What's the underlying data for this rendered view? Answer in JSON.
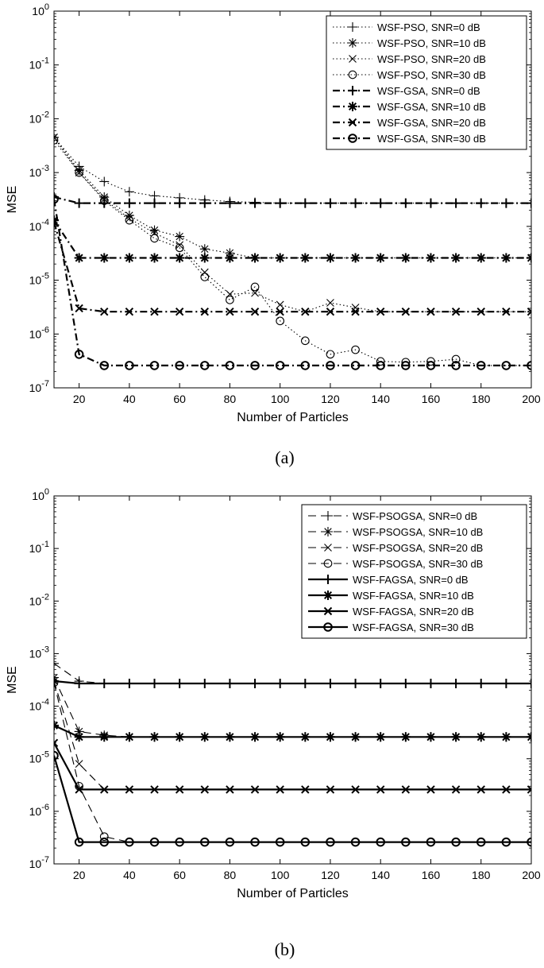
{
  "chart_data": [
    {
      "type": "line",
      "caption": "(a)",
      "xlabel": "Number of Particles",
      "ylabel": "MSE",
      "xlim": [
        10,
        200
      ],
      "ylim": [
        1e-07,
        1
      ],
      "yscale": "log",
      "xticks": [
        20,
        40,
        60,
        80,
        100,
        120,
        140,
        160,
        180,
        200
      ],
      "yticks": [
        {
          "base": "10",
          "exp": "-7",
          "value": 1e-07
        },
        {
          "base": "10",
          "exp": "-6",
          "value": 1e-06
        },
        {
          "base": "10",
          "exp": "-5",
          "value": 1e-05
        },
        {
          "base": "10",
          "exp": "-4",
          "value": 0.0001
        },
        {
          "base": "10",
          "exp": "-3",
          "value": 0.001
        },
        {
          "base": "10",
          "exp": "-2",
          "value": 0.01
        },
        {
          "base": "10",
          "exp": "-1",
          "value": 0.1
        },
        {
          "base": "10",
          "exp": "0",
          "value": 1
        }
      ],
      "legend_position": "top-right",
      "x": [
        10,
        20,
        30,
        40,
        50,
        60,
        70,
        80,
        90,
        100,
        110,
        120,
        130,
        140,
        150,
        160,
        170,
        180,
        190,
        200
      ],
      "series": [
        {
          "name": "WSF-PSO, SNR=0 dB",
          "style": "dotted",
          "marker": "plus",
          "values": [
            0.0045,
            0.0013,
            0.00068,
            0.00044,
            0.00037,
            0.00034,
            0.00031,
            0.00029,
            0.00028,
            0.00027,
            0.00027,
            0.00027,
            0.00027,
            0.00027,
            0.00027,
            0.00027,
            0.00027,
            0.00027,
            0.00027,
            0.00027
          ]
        },
        {
          "name": "WSF-PSO, SNR=10 dB",
          "style": "dotted",
          "marker": "star",
          "values": [
            0.0045,
            0.0011,
            0.00035,
            0.00016,
            8.5e-05,
            6.5e-05,
            3.8e-05,
            3.2e-05,
            2.6e-05,
            2.6e-05,
            2.6e-05,
            2.6e-05,
            2.6e-05,
            2.6e-05,
            2.6e-05,
            2.6e-05,
            2.6e-05,
            2.6e-05,
            2.6e-05,
            2.6e-05
          ]
        },
        {
          "name": "WSF-PSO, SNR=20 dB",
          "style": "dotted",
          "marker": "x",
          "values": [
            0.0045,
            0.001,
            0.00032,
            0.00014,
            7.5e-05,
            4.5e-05,
            1.4e-05,
            5.5e-06,
            5.8e-06,
            3.5e-06,
            2.6e-06,
            3.8e-06,
            3.1e-06,
            2.6e-06,
            2.6e-06,
            2.6e-06,
            2.6e-06,
            2.6e-06,
            2.6e-06,
            2.6e-06
          ]
        },
        {
          "name": "WSF-PSO, SNR=30 dB",
          "style": "dotted",
          "marker": "circle",
          "values": [
            0.004,
            0.001,
            0.0003,
            0.00013,
            6e-05,
            4e-05,
            1.15e-05,
            4.3e-06,
            7.5e-06,
            1.75e-06,
            7.5e-07,
            4.2e-07,
            5.1e-07,
            3.1e-07,
            3e-07,
            3.1e-07,
            3.4e-07,
            2.6e-07,
            2.6e-07,
            2.6e-07
          ]
        },
        {
          "name": "WSF-GSA, SNR=0 dB",
          "style": "dashdot",
          "marker": "plus",
          "values": [
            0.00035,
            0.00027,
            0.00027,
            0.00027,
            0.00027,
            0.00027,
            0.00027,
            0.00027,
            0.00027,
            0.00027,
            0.00027,
            0.00027,
            0.00027,
            0.00027,
            0.00027,
            0.00027,
            0.00027,
            0.00027,
            0.00027,
            0.00027
          ]
        },
        {
          "name": "WSF-GSA, SNR=10 dB",
          "style": "dashdot",
          "marker": "star",
          "values": [
            0.00013,
            2.6e-05,
            2.6e-05,
            2.6e-05,
            2.6e-05,
            2.6e-05,
            2.6e-05,
            2.6e-05,
            2.6e-05,
            2.6e-05,
            2.6e-05,
            2.6e-05,
            2.6e-05,
            2.6e-05,
            2.6e-05,
            2.6e-05,
            2.6e-05,
            2.6e-05,
            2.6e-05,
            2.6e-05
          ]
        },
        {
          "name": "WSF-GSA, SNR=20 dB",
          "style": "dashdot",
          "marker": "x",
          "values": [
            0.00012,
            3e-06,
            2.6e-06,
            2.6e-06,
            2.6e-06,
            2.6e-06,
            2.6e-06,
            2.6e-06,
            2.6e-06,
            2.6e-06,
            2.6e-06,
            2.6e-06,
            2.6e-06,
            2.6e-06,
            2.6e-06,
            2.6e-06,
            2.6e-06,
            2.6e-06,
            2.6e-06,
            2.6e-06
          ]
        },
        {
          "name": "WSF-GSA, SNR=30 dB",
          "style": "dashdot",
          "marker": "circle",
          "values": [
            0.00032,
            4.2e-07,
            2.6e-07,
            2.6e-07,
            2.6e-07,
            2.6e-07,
            2.6e-07,
            2.6e-07,
            2.6e-07,
            2.6e-07,
            2.6e-07,
            2.6e-07,
            2.6e-07,
            2.6e-07,
            2.6e-07,
            2.6e-07,
            2.6e-07,
            2.6e-07,
            2.6e-07,
            2.6e-07
          ]
        }
      ]
    },
    {
      "type": "line",
      "caption": "(b)",
      "xlabel": "Number of Particles",
      "ylabel": "MSE",
      "xlim": [
        10,
        200
      ],
      "ylim": [
        1e-07,
        1
      ],
      "yscale": "log",
      "xticks": [
        20,
        40,
        60,
        80,
        100,
        120,
        140,
        160,
        180,
        200
      ],
      "yticks": [
        {
          "base": "10",
          "exp": "-7",
          "value": 1e-07
        },
        {
          "base": "10",
          "exp": "-6",
          "value": 1e-06
        },
        {
          "base": "10",
          "exp": "-5",
          "value": 1e-05
        },
        {
          "base": "10",
          "exp": "-4",
          "value": 0.0001
        },
        {
          "base": "10",
          "exp": "-3",
          "value": 0.001
        },
        {
          "base": "10",
          "exp": "-2",
          "value": 0.01
        },
        {
          "base": "10",
          "exp": "-1",
          "value": 0.1
        },
        {
          "base": "10",
          "exp": "0",
          "value": 1
        }
      ],
      "legend_position": "top-right",
      "x": [
        10,
        20,
        30,
        40,
        50,
        60,
        70,
        80,
        90,
        100,
        110,
        120,
        130,
        140,
        150,
        160,
        170,
        180,
        190,
        200
      ],
      "series": [
        {
          "name": "WSF-PSOGSA, SNR=0 dB",
          "style": "dashed",
          "marker": "plus",
          "values": [
            0.00065,
            0.0003,
            0.00027,
            0.00027,
            0.00027,
            0.00027,
            0.00027,
            0.00027,
            0.00027,
            0.00027,
            0.00027,
            0.00027,
            0.00027,
            0.00027,
            0.00027,
            0.00027,
            0.00027,
            0.00027,
            0.00027,
            0.00027
          ]
        },
        {
          "name": "WSF-PSOGSA, SNR=10 dB",
          "style": "dashed",
          "marker": "star",
          "values": [
            0.00035,
            3.3e-05,
            2.8e-05,
            2.6e-05,
            2.6e-05,
            2.6e-05,
            2.6e-05,
            2.6e-05,
            2.6e-05,
            2.6e-05,
            2.6e-05,
            2.6e-05,
            2.6e-05,
            2.6e-05,
            2.6e-05,
            2.6e-05,
            2.6e-05,
            2.6e-05,
            2.6e-05,
            2.6e-05
          ]
        },
        {
          "name": "WSF-PSOGSA, SNR=20 dB",
          "style": "dashed",
          "marker": "x",
          "values": [
            0.0003,
            8e-06,
            2.6e-06,
            2.6e-06,
            2.6e-06,
            2.6e-06,
            2.6e-06,
            2.6e-06,
            2.6e-06,
            2.6e-06,
            2.6e-06,
            2.6e-06,
            2.6e-06,
            2.6e-06,
            2.6e-06,
            2.6e-06,
            2.6e-06,
            2.6e-06,
            2.6e-06,
            2.6e-06
          ]
        },
        {
          "name": "WSF-PSOGSA, SNR=30 dB",
          "style": "dashed",
          "marker": "circle",
          "values": [
            0.00028,
            3e-06,
            3.3e-07,
            2.6e-07,
            2.6e-07,
            2.6e-07,
            2.6e-07,
            2.6e-07,
            2.6e-07,
            2.6e-07,
            2.6e-07,
            2.6e-07,
            2.6e-07,
            2.6e-07,
            2.6e-07,
            2.6e-07,
            2.6e-07,
            2.6e-07,
            2.6e-07,
            2.6e-07
          ]
        },
        {
          "name": "WSF-FAGSA, SNR=0 dB",
          "style": "solid",
          "marker": "plus",
          "values": [
            0.0003,
            0.00027,
            0.00027,
            0.00027,
            0.00027,
            0.00027,
            0.00027,
            0.00027,
            0.00027,
            0.00027,
            0.00027,
            0.00027,
            0.00027,
            0.00027,
            0.00027,
            0.00027,
            0.00027,
            0.00027,
            0.00027,
            0.00027
          ]
        },
        {
          "name": "WSF-FAGSA, SNR=10 dB",
          "style": "solid",
          "marker": "star",
          "values": [
            4.3e-05,
            2.6e-05,
            2.6e-05,
            2.6e-05,
            2.6e-05,
            2.6e-05,
            2.6e-05,
            2.6e-05,
            2.6e-05,
            2.6e-05,
            2.6e-05,
            2.6e-05,
            2.6e-05,
            2.6e-05,
            2.6e-05,
            2.6e-05,
            2.6e-05,
            2.6e-05,
            2.6e-05,
            2.6e-05
          ]
        },
        {
          "name": "WSF-FAGSA, SNR=20 dB",
          "style": "solid",
          "marker": "x",
          "values": [
            2e-05,
            2.6e-06,
            2.6e-06,
            2.6e-06,
            2.6e-06,
            2.6e-06,
            2.6e-06,
            2.6e-06,
            2.6e-06,
            2.6e-06,
            2.6e-06,
            2.6e-06,
            2.6e-06,
            2.6e-06,
            2.6e-06,
            2.6e-06,
            2.6e-06,
            2.6e-06,
            2.6e-06,
            2.6e-06
          ]
        },
        {
          "name": "WSF-FAGSA, SNR=30 dB",
          "style": "solid",
          "marker": "circle",
          "values": [
            1.15e-05,
            2.6e-07,
            2.6e-07,
            2.6e-07,
            2.6e-07,
            2.6e-07,
            2.6e-07,
            2.6e-07,
            2.6e-07,
            2.6e-07,
            2.6e-07,
            2.6e-07,
            2.6e-07,
            2.6e-07,
            2.6e-07,
            2.6e-07,
            2.6e-07,
            2.6e-07,
            2.6e-07,
            2.6e-07
          ]
        }
      ]
    }
  ]
}
